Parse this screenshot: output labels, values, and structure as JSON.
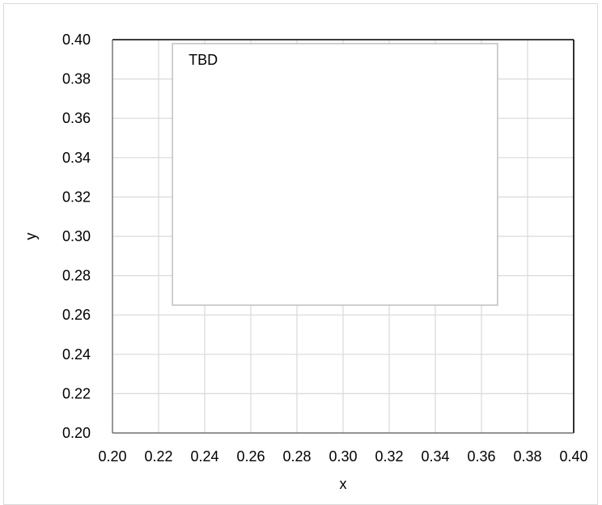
{
  "chart_data": {
    "type": "scatter",
    "title": "",
    "xlabel": "x",
    "ylabel": "y",
    "xlim": [
      0.2,
      0.4
    ],
    "ylim": [
      0.2,
      0.4
    ],
    "x_ticks": [
      "0.20",
      "0.22",
      "0.24",
      "0.26",
      "0.28",
      "0.30",
      "0.32",
      "0.34",
      "0.36",
      "0.38",
      "0.40"
    ],
    "y_ticks": [
      "0.20",
      "0.22",
      "0.24",
      "0.26",
      "0.28",
      "0.30",
      "0.32",
      "0.34",
      "0.36",
      "0.38",
      "0.40"
    ],
    "grid": true,
    "series": [],
    "annotation": {
      "text": "TBD",
      "x_range": [
        0.226,
        0.367
      ],
      "y_range": [
        0.265,
        0.398
      ]
    }
  }
}
